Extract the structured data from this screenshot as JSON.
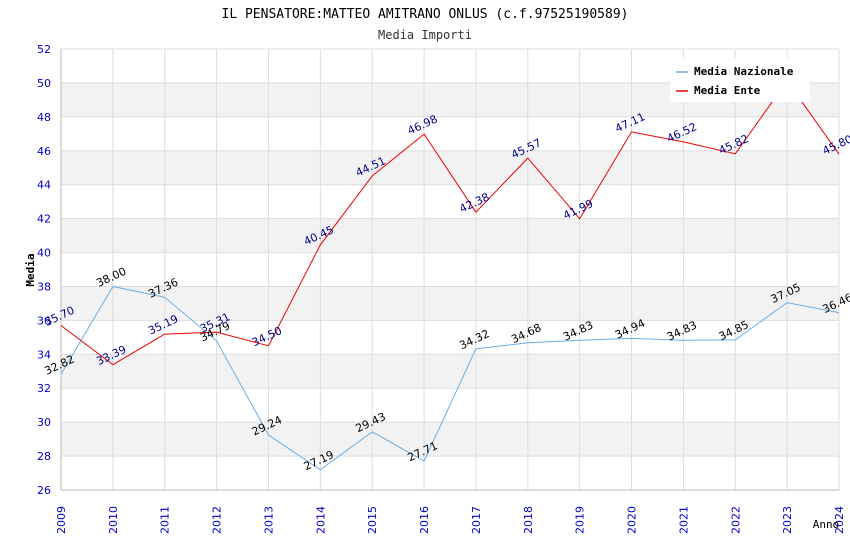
{
  "chart_data": {
    "type": "line",
    "title": "IL PENSATORE:MATTEO AMITRANO ONLUS (c.f.97525190589)",
    "subtitle": "Media Importi",
    "xlabel": "Anno",
    "ylabel": "Media",
    "ylim": [
      26,
      52
    ],
    "ytick_step": 2,
    "grid": true,
    "legend_position": "top-right",
    "categories": [
      "2009",
      "2010",
      "2011",
      "2012",
      "2013",
      "2014",
      "2015",
      "2016",
      "2017",
      "2018",
      "2019",
      "2020",
      "2021",
      "2022",
      "2023",
      "2024"
    ],
    "series": [
      {
        "name": "Media Nazionale",
        "color": "#6aaee8",
        "label_color": "#000000",
        "values": [
          32.82,
          38.0,
          37.36,
          34.79,
          29.24,
          27.19,
          29.43,
          27.71,
          34.32,
          34.68,
          34.83,
          34.94,
          34.83,
          34.85,
          37.05,
          36.46
        ]
      },
      {
        "name": "Media Ente",
        "color": "#ee0000",
        "label_color": "#00008b",
        "values": [
          35.7,
          33.39,
          35.19,
          35.31,
          34.5,
          40.45,
          44.51,
          46.98,
          42.38,
          45.57,
          41.99,
          47.11,
          46.52,
          45.82,
          50.12,
          45.8
        ]
      }
    ],
    "colors": {
      "band": "#f2f2f2",
      "grid": "#dddddd",
      "tick": "#0000cc"
    }
  }
}
